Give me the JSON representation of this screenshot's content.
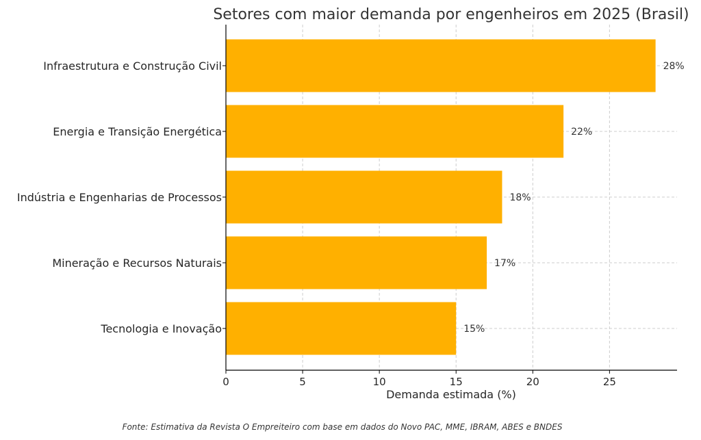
{
  "chart_data": {
    "type": "bar",
    "orientation": "horizontal",
    "title": "Setores com maior demanda por engenheiros em 2025 (Brasil)",
    "xlabel": "Demanda estimada (%)",
    "ylabel": "",
    "categories": [
      "Infraestrutura e Construção Civil",
      "Energia e Transição Energética",
      "Indústria e Engenharias de Processos",
      "Mineração e Recursos Naturais",
      "Tecnologia e Inovação"
    ],
    "values": [
      28,
      22,
      18,
      17,
      15
    ],
    "data_labels": [
      "28%",
      "22%",
      "18%",
      "17%",
      "15%"
    ],
    "xlim": [
      0,
      29.4
    ],
    "xticks": [
      0,
      5,
      10,
      15,
      20,
      25
    ],
    "grid": true,
    "bar_color": "#FFB000"
  },
  "footer": {
    "source": "Fonte: Estimativa da Revista O Empreiteiro com base em dados do Novo PAC, MME, IBRAM, ABES e BNDES"
  }
}
